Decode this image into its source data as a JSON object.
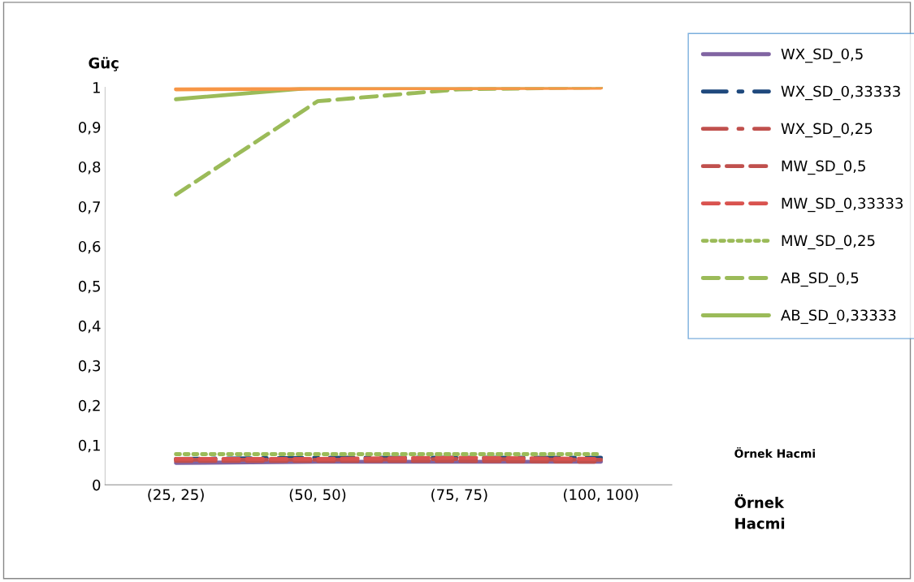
{
  "chart_data": {
    "type": "line",
    "ylabel": "Güç",
    "xlabel": "Örnek\nHacmi",
    "annotations": [
      "Örnek Hacmi"
    ],
    "categories": [
      "(25, 25)",
      "(50, 50)",
      "(75, 75)",
      "(100, 100)"
    ],
    "ylim": [
      0,
      1
    ],
    "yticks": [
      {
        "value": 0,
        "label": "0"
      },
      {
        "value": 0.1,
        "label": "0,1"
      },
      {
        "value": 0.2,
        "label": "0,2"
      },
      {
        "value": 0.3,
        "label": "0,3"
      },
      {
        "value": 0.4,
        "label": "0,4"
      },
      {
        "value": 0.5,
        "label": "0,5"
      },
      {
        "value": 0.6,
        "label": "0,6"
      },
      {
        "value": 0.7,
        "label": "0,7"
      },
      {
        "value": 0.8,
        "label": "0,8"
      },
      {
        "value": 0.9,
        "label": "0,9"
      },
      {
        "value": 1,
        "label": "1"
      }
    ],
    "grid": false,
    "legend": "right",
    "marker": "none",
    "series": [
      {
        "name": "WX_SD_0,5",
        "color": "#8064a2",
        "line_style": "solid",
        "values": [
          0.055,
          0.058,
          0.058,
          0.058
        ]
      },
      {
        "name": "WX_SD_0,33333",
        "color": "#1f497d",
        "line_style": "dashdot",
        "values": [
          0.065,
          0.068,
          0.068,
          0.068
        ]
      },
      {
        "name": "WX_SD_0,25",
        "color": "#c0504d",
        "line_style": "dashdot",
        "values": [
          0.063,
          0.063,
          0.065,
          0.063
        ]
      },
      {
        "name": "MW_SD_0,5",
        "color": "#c0504d",
        "line_style": "dashed",
        "values": [
          0.06,
          0.06,
          0.06,
          0.058
        ]
      },
      {
        "name": "MW_SD_0,33333",
        "color": "#d9534f",
        "line_style": "dashed",
        "values": [
          0.065,
          0.065,
          0.068,
          0.065
        ]
      },
      {
        "name": "MW_SD_0,25",
        "color": "#9bbb59",
        "line_style": "dotted",
        "values": [
          0.077,
          0.077,
          0.077,
          0.077
        ]
      },
      {
        "name": "AB_SD_0,5",
        "color": "#9bbb59",
        "line_style": "dashed",
        "values": [
          0.73,
          0.965,
          0.995,
          1
        ]
      },
      {
        "name": "AB_SD_0,33333",
        "color": "#9bbb59",
        "line_style": "solid",
        "values": [
          0.97,
          1,
          1,
          1
        ]
      },
      {
        "color": "#f79646",
        "line_style": "solid",
        "values": [
          0.995,
          0.997,
          0.998,
          0.999
        ]
      }
    ]
  }
}
